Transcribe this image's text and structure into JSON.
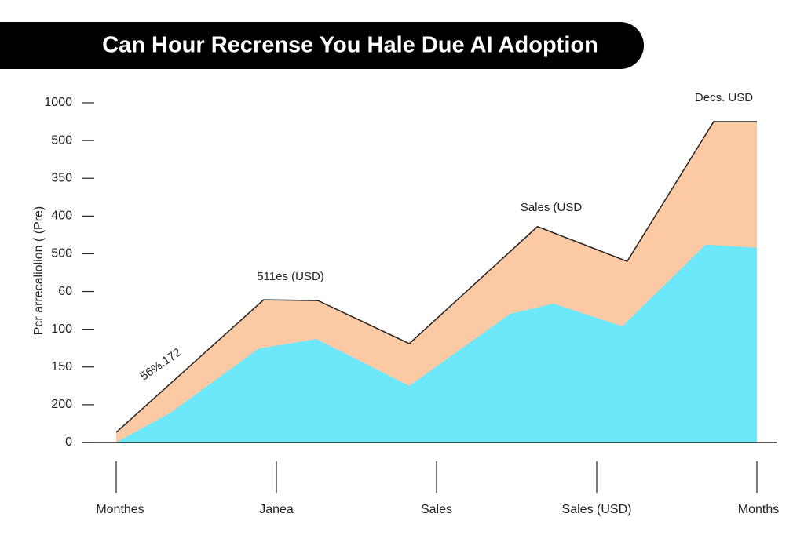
{
  "chart_data": {
    "type": "area",
    "title": "Can Hour Recrense You Hale Due AI Adoption",
    "y_label": "Pcr arrecaliolion ( (Pre)",
    "categories": [
      "Monthes",
      "Janea",
      "Sales",
      "Sales (USD)",
      "Months"
    ],
    "y_categories": [
      0,
      200,
      150,
      100,
      60,
      500,
      400,
      350,
      500,
      1000
    ],
    "xlim": [
      0,
      4
    ],
    "ylim": [
      0,
      9
    ],
    "series": [
      {
        "color": "#fbc9a4",
        "x": [
          0,
          0.92,
          1.26,
          1.83,
          2.63,
          3.19,
          3.73,
          4.0
        ],
        "values": [
          0.27,
          3.78,
          3.76,
          2.62,
          5.72,
          4.8,
          8.5,
          8.5
        ]
      },
      {
        "color": "#6de8fb",
        "x": [
          0,
          0.34,
          0.89,
          1.25,
          1.83,
          2.46,
          2.73,
          3.16,
          3.68,
          4.0
        ],
        "values": [
          0,
          0.79,
          2.49,
          2.74,
          1.5,
          3.41,
          3.68,
          3.08,
          5.24,
          5.16
        ]
      }
    ],
    "annotations": [
      "56%.172",
      "511es (USD)",
      "Sales (USD",
      "Decs. USD"
    ]
  }
}
